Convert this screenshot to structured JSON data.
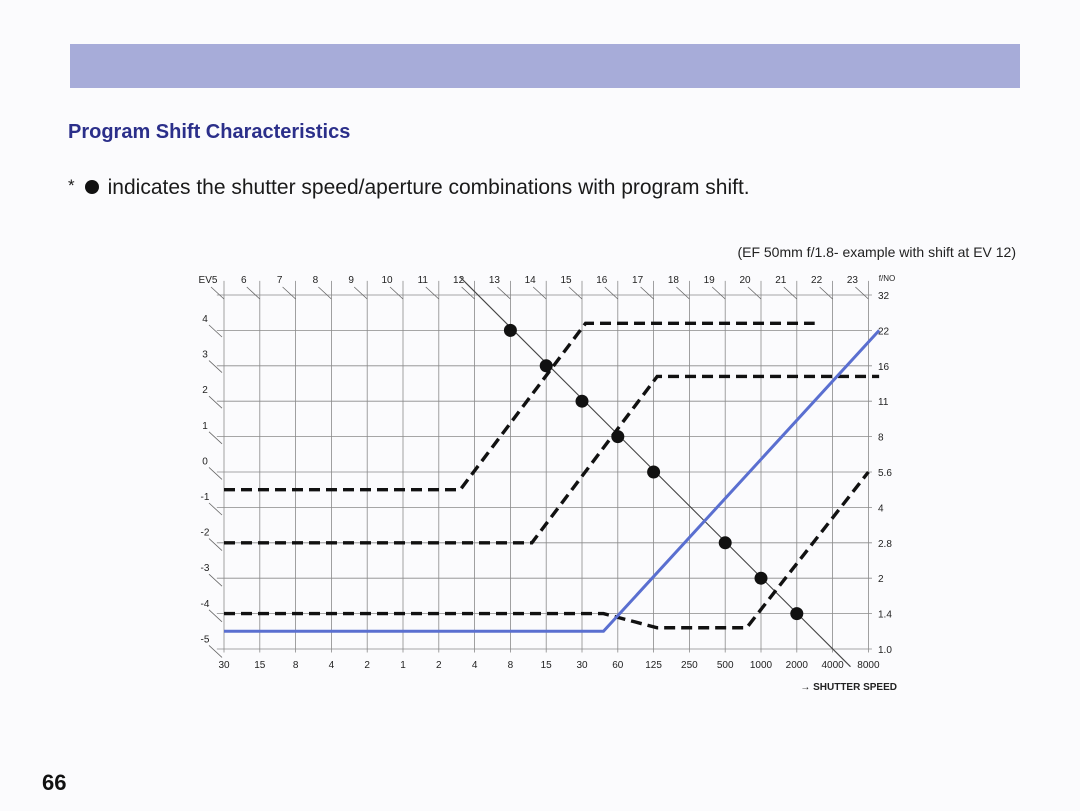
{
  "page": {
    "title": "Program Shift Characteristics",
    "note_star": "*",
    "note_text": "indicates the shutter speed/aperture combinations with program shift.",
    "subnote": "(EF 50mm f/1.8- example with shift at EV 12)",
    "page_number": "66"
  },
  "colors": {
    "band": "#a7acd9",
    "title": "#2b2f8a",
    "blue_line": "#5a6fd0",
    "ink": "#111111"
  },
  "chart_data": {
    "type": "line",
    "x_ticks": [
      "30",
      "15",
      "8",
      "4",
      "2",
      "1",
      "2",
      "4",
      "8",
      "15",
      "30",
      "60",
      "125",
      "250",
      "500",
      "1000",
      "2000",
      "4000",
      "8000"
    ],
    "x_axis_label": "→ SHUTTER SPEED",
    "y_ticks": [
      "1.0",
      "1.4",
      "2",
      "2.8",
      "4",
      "5.6",
      "8",
      "11",
      "16",
      "22",
      "32"
    ],
    "y_axis_label": "f/NO",
    "ev_top_labels": [
      "EV5",
      "6",
      "7",
      "8",
      "9",
      "10",
      "11",
      "12",
      "13",
      "14",
      "15",
      "16",
      "17",
      "18",
      "19",
      "20",
      "21",
      "22",
      "23"
    ],
    "ev_left_labels": [
      "4",
      "3",
      "2",
      "1",
      "0",
      "-1",
      "-2",
      "-3",
      "-4",
      "-5"
    ],
    "series": [
      {
        "style": "dashed",
        "points": [
          [
            0,
            4.5
          ],
          [
            6.6,
            4.5
          ],
          [
            10.1,
            9.2
          ],
          [
            16.5,
            9.2
          ]
        ]
      },
      {
        "style": "dashed",
        "points": [
          [
            0,
            3.0
          ],
          [
            8.6,
            3.0
          ],
          [
            12.1,
            7.7
          ],
          [
            18.3,
            7.7
          ]
        ]
      },
      {
        "style": "dashed",
        "points": [
          [
            0,
            1.0
          ],
          [
            10.6,
            1.0
          ],
          [
            12.1,
            0.6
          ],
          [
            14.6,
            0.6
          ],
          [
            18.0,
            5.0
          ]
        ]
      },
      {
        "style": "blue",
        "points": [
          [
            0,
            0.5
          ],
          [
            10.6,
            0.5
          ],
          [
            18.3,
            9.0
          ]
        ]
      }
    ],
    "reference_line": [
      [
        6.6,
        10.5
      ],
      [
        17.5,
        -0.5
      ]
    ],
    "shift_points": [
      [
        8.0,
        9.0
      ],
      [
        9.0,
        8.0
      ],
      [
        10.0,
        7.0
      ],
      [
        11.0,
        6.0
      ],
      [
        12.0,
        5.0
      ],
      [
        14.0,
        3.0
      ],
      [
        15.0,
        2.0
      ],
      [
        16.0,
        1.0
      ]
    ]
  }
}
